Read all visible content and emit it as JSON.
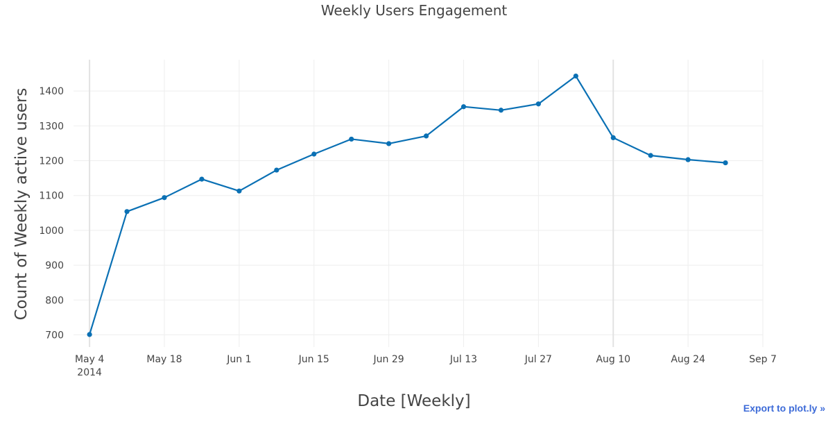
{
  "chart_data": {
    "type": "line",
    "title": "Weekly Users Engagement",
    "xlabel": "Date [Weekly]",
    "ylabel": "Count of Weekly active users",
    "x": [
      "2014-05-04",
      "2014-05-11",
      "2014-05-18",
      "2014-05-25",
      "2014-06-01",
      "2014-06-08",
      "2014-06-15",
      "2014-06-22",
      "2014-06-29",
      "2014-07-06",
      "2014-07-13",
      "2014-07-20",
      "2014-07-27",
      "2014-08-03",
      "2014-08-10",
      "2014-08-17",
      "2014-08-24",
      "2014-08-31"
    ],
    "series": [
      {
        "name": "",
        "values": [
          701,
          1054,
          1094,
          1147,
          1113,
          1173,
          1219,
          1262,
          1249,
          1271,
          1355,
          1345,
          1363,
          1443,
          1266,
          1215,
          1203,
          1194
        ],
        "color": "#0a70b4"
      }
    ],
    "xlim": [
      "2014-05-01",
      "2014-09-07"
    ],
    "ylim": [
      665,
      1490
    ],
    "yticks": [
      700,
      800,
      900,
      1000,
      1100,
      1200,
      1300,
      1400
    ],
    "xticks": [
      {
        "date": "2014-05-04",
        "label": "May 4",
        "sublabel": "2014"
      },
      {
        "date": "2014-05-18",
        "label": "May 18",
        "sublabel": ""
      },
      {
        "date": "2014-06-01",
        "label": "Jun 1",
        "sublabel": ""
      },
      {
        "date": "2014-06-15",
        "label": "Jun 15",
        "sublabel": ""
      },
      {
        "date": "2014-06-29",
        "label": "Jun 29",
        "sublabel": ""
      },
      {
        "date": "2014-07-13",
        "label": "Jul 13",
        "sublabel": ""
      },
      {
        "date": "2014-07-27",
        "label": "Jul 27",
        "sublabel": ""
      },
      {
        "date": "2014-08-10",
        "label": "Aug 10",
        "sublabel": ""
      },
      {
        "date": "2014-08-24",
        "label": "Aug 24",
        "sublabel": ""
      },
      {
        "date": "2014-09-07",
        "label": "Sep 7",
        "sublabel": ""
      }
    ],
    "grid": true,
    "legend": "none"
  },
  "export_link": {
    "label": "Export to plot.ly »"
  }
}
